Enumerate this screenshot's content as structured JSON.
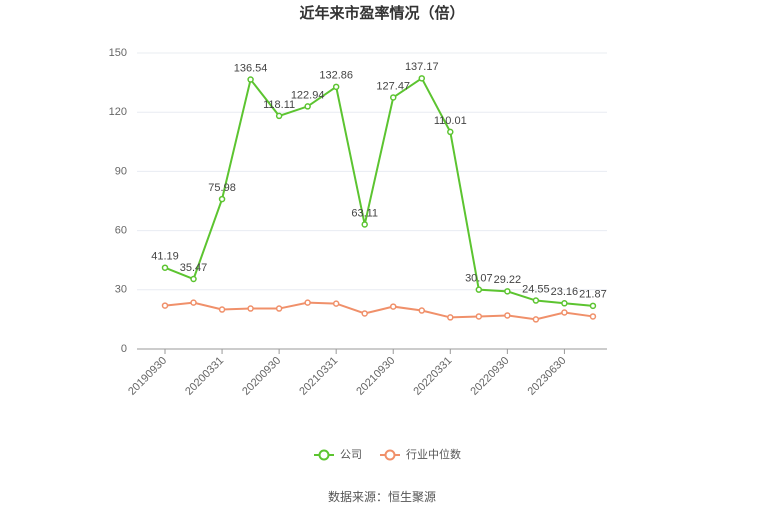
{
  "chart_data": {
    "type": "line",
    "title": "近年来市盈率情况（倍）",
    "categories": [
      "20190930",
      null,
      "20200331",
      null,
      "20200930",
      null,
      "20210331",
      null,
      "20210930",
      null,
      "20220331",
      null,
      "20220930",
      null,
      "20230630",
      null
    ],
    "series": [
      {
        "name": "公司",
        "color": "#5cc430",
        "values": [
          41.19,
          35.47,
          75.98,
          136.54,
          118.11,
          122.94,
          132.86,
          63.11,
          127.47,
          137.17,
          110.01,
          30.07,
          29.22,
          24.55,
          23.16,
          21.87
        ],
        "data_labels": true
      },
      {
        "name": "行业中位数",
        "color": "#f0906a",
        "values": [
          22,
          23.5,
          20,
          20.5,
          20.5,
          23.5,
          23,
          18,
          21.5,
          19.5,
          16,
          16.5,
          17,
          15,
          18.5,
          16.5
        ]
      }
    ],
    "ylim": [
      0,
      150
    ],
    "yticks": [
      0,
      30,
      60,
      90,
      120,
      150
    ],
    "grid": true,
    "source": "数据来源：恒生聚源"
  }
}
